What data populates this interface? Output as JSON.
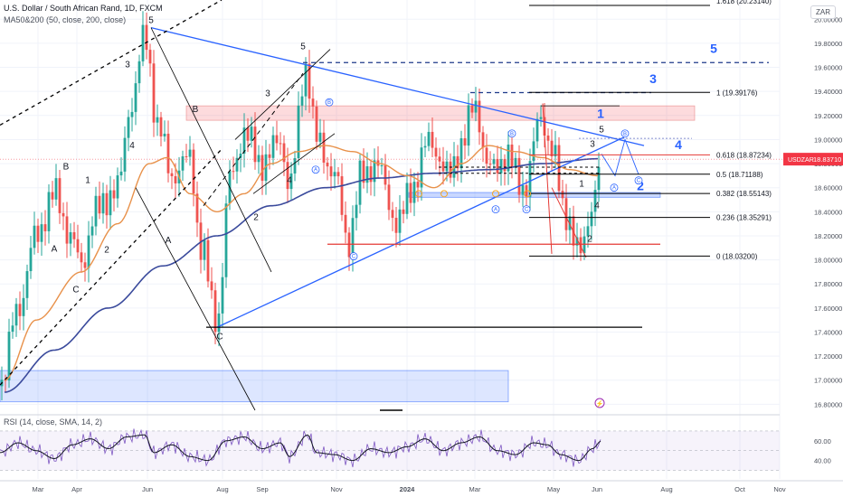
{
  "header": {
    "title": "U.S. Dollar / South African Rand, 1D, FXCM",
    "ma_label": "MA50&200 (50, close, 200, close)",
    "rsi_label": "RSI (14, close, SMA, 14, 2)",
    "currency": "ZAR"
  },
  "colors": {
    "candle_up": "#26a69a",
    "candle_down": "#ef5350",
    "ma50": "#e8914a",
    "ma200": "#3a4a9c",
    "trendline": "#2962ff",
    "rsi": "#7e57c2",
    "fib_high": "#e53935",
    "price_tag": "#f23645"
  },
  "chart_data": {
    "type": "candlestick",
    "symbol": "USDZAR",
    "last_price": "18.83710",
    "ylim": [
      16.75,
      20.16
    ],
    "y_ticks": [
      "20.00000",
      "19.80000",
      "19.60000",
      "19.40000",
      "19.20000",
      "19.00000",
      "18.80000",
      "18.60000",
      "18.40000",
      "18.20000",
      "18.00000",
      "17.80000",
      "17.60000",
      "17.40000",
      "17.20000",
      "17.00000",
      "16.80000"
    ],
    "x_ticks": [
      "Mar",
      "Apr",
      "Jun",
      "Aug",
      "Sep",
      "Nov",
      "2024",
      "Mar",
      "May",
      "Jun",
      "Aug",
      "Oct",
      "Nov"
    ],
    "rsi_ticks": [
      "60.00",
      "40.00"
    ],
    "close_anchors": [
      [
        0,
        16.95
      ],
      [
        20,
        17.6
      ],
      [
        40,
        18.2
      ],
      [
        60,
        18.55
      ],
      [
        78,
        18.2
      ],
      [
        90,
        17.95
      ],
      [
        105,
        18.4
      ],
      [
        130,
        18.6
      ],
      [
        145,
        19.3
      ],
      [
        160,
        19.85
      ],
      [
        175,
        19.1
      ],
      [
        190,
        18.7
      ],
      [
        210,
        18.85
      ],
      [
        222,
        18.1
      ],
      [
        240,
        17.5
      ],
      [
        255,
        18.7
      ],
      [
        270,
        19.05
      ],
      [
        290,
        18.8
      ],
      [
        310,
        19.0
      ],
      [
        320,
        18.6
      ],
      [
        338,
        19.6
      ],
      [
        350,
        19.0
      ],
      [
        370,
        18.7
      ],
      [
        385,
        18.15
      ],
      [
        400,
        18.7
      ],
      [
        415,
        18.8
      ],
      [
        440,
        18.3
      ],
      [
        455,
        18.6
      ],
      [
        475,
        19.0
      ],
      [
        495,
        18.7
      ],
      [
        510,
        18.95
      ],
      [
        525,
        19.3
      ],
      [
        540,
        18.75
      ],
      [
        560,
        18.85
      ],
      [
        580,
        18.6
      ],
      [
        598,
        19.2
      ],
      [
        610,
        18.9
      ],
      [
        625,
        18.4
      ],
      [
        640,
        18.05
      ],
      [
        655,
        18.45
      ],
      [
        665,
        18.84
      ]
    ],
    "ma50_anchors": [
      [
        5,
        17.0
      ],
      [
        40,
        17.5
      ],
      [
        90,
        17.9
      ],
      [
        130,
        18.3
      ],
      [
        165,
        18.8
      ],
      [
        185,
        18.85
      ],
      [
        210,
        18.55
      ],
      [
        240,
        18.4
      ],
      [
        270,
        18.55
      ],
      [
        300,
        18.8
      ],
      [
        330,
        18.9
      ],
      [
        360,
        18.95
      ],
      [
        390,
        18.9
      ],
      [
        420,
        18.8
      ],
      [
        450,
        18.7
      ],
      [
        480,
        18.6
      ],
      [
        510,
        18.8
      ],
      [
        540,
        18.95
      ],
      [
        570,
        18.9
      ],
      [
        600,
        18.85
      ],
      [
        630,
        18.75
      ],
      [
        660,
        18.7
      ]
    ],
    "ma200_anchors": [
      [
        5,
        16.9
      ],
      [
        60,
        17.25
      ],
      [
        120,
        17.6
      ],
      [
        180,
        17.95
      ],
      [
        240,
        18.2
      ],
      [
        300,
        18.45
      ],
      [
        360,
        18.6
      ],
      [
        420,
        18.68
      ],
      [
        480,
        18.72
      ],
      [
        540,
        18.75
      ],
      [
        600,
        18.8
      ],
      [
        660,
        18.84
      ]
    ],
    "rsi_anchors": [
      [
        0,
        48
      ],
      [
        20,
        58
      ],
      [
        40,
        50
      ],
      [
        60,
        42
      ],
      [
        80,
        56
      ],
      [
        100,
        62
      ],
      [
        120,
        52
      ],
      [
        140,
        64
      ],
      [
        160,
        66
      ],
      [
        170,
        48
      ],
      [
        190,
        56
      ],
      [
        210,
        44
      ],
      [
        230,
        40
      ],
      [
        250,
        60
      ],
      [
        270,
        64
      ],
      [
        290,
        52
      ],
      [
        310,
        58
      ],
      [
        320,
        44
      ],
      [
        340,
        66
      ],
      [
        350,
        48
      ],
      [
        370,
        46
      ],
      [
        390,
        40
      ],
      [
        410,
        52
      ],
      [
        430,
        48
      ],
      [
        450,
        54
      ],
      [
        470,
        62
      ],
      [
        490,
        50
      ],
      [
        510,
        58
      ],
      [
        530,
        64
      ],
      [
        550,
        50
      ],
      [
        570,
        46
      ],
      [
        590,
        58
      ],
      [
        605,
        56
      ],
      [
        620,
        46
      ],
      [
        640,
        40
      ],
      [
        655,
        52
      ],
      [
        665,
        60
      ]
    ],
    "fib_levels": [
      {
        "label": "1 (19.39176)",
        "value": 19.39176
      },
      {
        "label": "0.618 (18.87234)",
        "value": 18.87234
      },
      {
        "label": "0.5 (18.71188)",
        "value": 18.71188
      },
      {
        "label": "0.382 (18.55143)",
        "value": 18.55143
      },
      {
        "label": "0.236 (18.35291)",
        "value": 18.35291
      },
      {
        "label": "0 (18.03200)",
        "value": 18.032
      },
      {
        "label": "1.618 (20.23140)",
        "value": 20.2314
      }
    ],
    "zones": [
      {
        "name": "resistance",
        "y1": 19.16,
        "y2": 19.28,
        "color": "rgba(242,54,69,0.18)"
      },
      {
        "name": "support",
        "y1": 16.82,
        "y2": 17.08,
        "color": "rgba(41,98,255,0.16)"
      },
      {
        "name": "mid",
        "y1": 18.52,
        "y2": 18.56,
        "color": "rgba(41,98,255,0.25)"
      }
    ],
    "wave_labels": [
      {
        "t": "5",
        "x": 167,
        "y": 19.97
      },
      {
        "t": "3",
        "x": 141,
        "y": 19.6
      },
      {
        "t": "4",
        "x": 146,
        "y": 18.93
      },
      {
        "t": "B",
        "x": 73,
        "y": 18.75
      },
      {
        "t": "1",
        "x": 97,
        "y": 18.64
      },
      {
        "t": "A",
        "x": 60,
        "y": 18.07
      },
      {
        "t": "2",
        "x": 118,
        "y": 18.06
      },
      {
        "t": "C",
        "x": 84,
        "y": 17.73
      },
      {
        "t": "B",
        "x": 216,
        "y": 19.23
      },
      {
        "t": "A",
        "x": 186,
        "y": 18.14
      },
      {
        "t": "C",
        "x": 243,
        "y": 17.34
      },
      {
        "t": "2",
        "x": 283,
        "y": 18.33
      },
      {
        "t": "3",
        "x": 296,
        "y": 19.36
      },
      {
        "t": "4",
        "x": 320,
        "y": 18.64
      },
      {
        "t": "5",
        "x": 335,
        "y": 19.75
      },
      {
        "t": "1",
        "x": 664,
        "y": 19.18
      },
      {
        "t": "3",
        "x": 722,
        "y": 19.47
      },
      {
        "t": "4",
        "x": 750,
        "y": 18.92
      },
      {
        "t": "5",
        "x": 789,
        "y": 19.72
      },
      {
        "t": "2",
        "x": 708,
        "y": 18.58
      },
      {
        "t": "5",
        "x": 665,
        "y": 19.06
      },
      {
        "t": "3",
        "x": 655,
        "y": 18.94
      },
      {
        "t": "1",
        "x": 643,
        "y": 18.61
      },
      {
        "t": "4",
        "x": 660,
        "y": 18.43
      },
      {
        "t": "2",
        "x": 652,
        "y": 18.15
      }
    ],
    "circle_labels": [
      {
        "t": "B",
        "x": 364,
        "y": 19.31
      },
      {
        "t": "A",
        "x": 349,
        "y": 18.75
      },
      {
        "t": "C",
        "x": 391,
        "y": 18.03
      },
      {
        "t": "A",
        "x": 548,
        "y": 18.42
      },
      {
        "t": "B",
        "x": 566,
        "y": 19.05
      },
      {
        "t": "C",
        "x": 582,
        "y": 18.42
      },
      {
        "t": "A",
        "x": 679,
        "y": 18.6
      },
      {
        "t": "B",
        "x": 691,
        "y": 19.05
      },
      {
        "t": "C",
        "x": 706,
        "y": 18.66
      }
    ]
  }
}
